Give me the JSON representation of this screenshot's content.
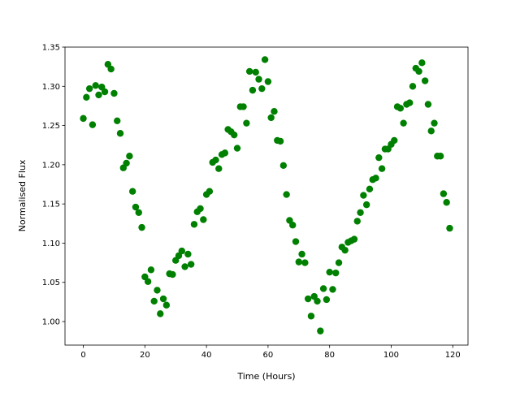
{
  "chart_data": {
    "type": "scatter",
    "x_label": "Time (Hours)",
    "y_label": "Normalised Flux",
    "color": "#008000",
    "x": [
      0,
      1,
      2,
      3,
      4,
      5,
      6,
      7,
      8,
      9,
      10,
      11,
      12,
      13,
      14,
      15,
      16,
      17,
      18,
      19,
      20,
      21,
      22,
      23,
      24,
      25,
      26,
      27,
      28,
      29,
      30,
      31,
      32,
      33,
      34,
      35,
      36,
      37,
      38,
      39,
      40,
      41,
      42,
      43,
      44,
      45,
      46,
      47,
      48,
      49,
      50,
      51,
      52,
      53,
      54,
      55,
      56,
      57,
      58,
      59,
      60,
      61,
      62,
      63,
      64,
      65,
      66,
      67,
      68,
      69,
      70,
      71,
      72,
      73,
      74,
      75,
      76,
      77,
      78,
      79,
      80,
      81,
      82,
      83,
      84,
      85,
      86,
      87,
      88,
      89,
      90,
      91,
      92,
      93,
      94,
      95,
      96,
      97,
      98,
      99,
      100,
      101,
      102,
      103,
      104,
      105,
      106,
      107,
      108,
      109,
      110,
      111,
      112,
      113,
      114,
      115,
      116,
      117,
      118,
      119
    ],
    "values": [
      1.259,
      1.286,
      1.297,
      1.251,
      1.301,
      1.289,
      1.299,
      1.293,
      1.328,
      1.322,
      1.291,
      1.256,
      1.24,
      1.196,
      1.202,
      1.211,
      1.166,
      1.146,
      1.139,
      1.12,
      1.057,
      1.051,
      1.066,
      1.026,
      1.04,
      1.01,
      1.029,
      1.021,
      1.061,
      1.06,
      1.078,
      1.084,
      1.09,
      1.07,
      1.086,
      1.073,
      1.124,
      1.14,
      1.144,
      1.13,
      1.162,
      1.166,
      1.203,
      1.206,
      1.195,
      1.213,
      1.215,
      1.245,
      1.242,
      1.238,
      1.221,
      1.274,
      1.274,
      1.253,
      1.319,
      1.295,
      1.318,
      1.309,
      1.297,
      1.334,
      1.306,
      1.26,
      1.268,
      1.231,
      1.23,
      1.199,
      1.162,
      1.129,
      1.123,
      1.102,
      1.076,
      1.086,
      1.075,
      1.029,
      1.007,
      1.032,
      1.026,
      0.988,
      1.042,
      1.028,
      1.063,
      1.041,
      1.062,
      1.075,
      1.095,
      1.091,
      1.101,
      1.103,
      1.105,
      1.128,
      1.139,
      1.161,
      1.149,
      1.169,
      1.181,
      1.183,
      1.209,
      1.195,
      1.22,
      1.22,
      1.226,
      1.231,
      1.274,
      1.272,
      1.253,
      1.277,
      1.279,
      1.3,
      1.323,
      1.319,
      1.33,
      1.307,
      1.277,
      1.243,
      1.253,
      1.211,
      1.211,
      1.163,
      1.152,
      1.119
    ],
    "xlim": [
      -5.95,
      124.95
    ],
    "ylim": [
      0.97,
      1.35
    ],
    "xticks": [
      0,
      20,
      40,
      60,
      80,
      100,
      120
    ],
    "yticks": [
      {
        "value": 1,
        "label": "1.00"
      },
      1.05,
      {
        "value": 1.1,
        "label": "1.10"
      },
      1.15,
      {
        "value": 1.2,
        "label": "1.20"
      },
      1.25,
      {
        "value": 1.3,
        "label": "1.30"
      },
      1.35
    ]
  }
}
